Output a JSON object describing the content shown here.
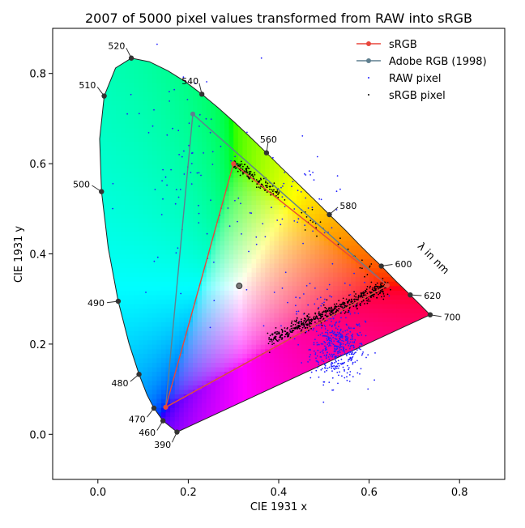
{
  "chart_data": {
    "type": "scatter",
    "title": "2007 of 5000 pixel values transformed from RAW into sRGB",
    "xlabel": "CIE 1931 x",
    "ylabel": "CIE 1931 y",
    "xlim": [
      -0.1,
      0.9
    ],
    "ylim": [
      -0.1,
      0.9
    ],
    "x_ticks": [
      0.0,
      0.2,
      0.4,
      0.6,
      0.8
    ],
    "y_ticks": [
      0.0,
      0.2,
      0.4,
      0.6,
      0.8
    ],
    "x_tick_labels": [
      "0.0",
      "0.2",
      "0.4",
      "0.6",
      "0.8"
    ],
    "y_tick_labels": [
      "0.0",
      "0.2",
      "0.4",
      "0.6",
      "0.8"
    ],
    "grid": false,
    "legend_position": "top-right",
    "wavelength_axis_label": "λ in nm",
    "spectral_locus": [
      {
        "nm": "390",
        "x": 0.175,
        "y": 0.005
      },
      {
        "nm": "460",
        "x": 0.144,
        "y": 0.03
      },
      {
        "nm": "470",
        "x": 0.124,
        "y": 0.058
      },
      {
        "nm": "480",
        "x": 0.091,
        "y": 0.133
      },
      {
        "nm": "490",
        "x": 0.045,
        "y": 0.295
      },
      {
        "nm": "500",
        "x": 0.008,
        "y": 0.538
      },
      {
        "nm": "510",
        "x": 0.014,
        "y": 0.75
      },
      {
        "nm": "520",
        "x": 0.074,
        "y": 0.834
      },
      {
        "nm": "540",
        "x": 0.23,
        "y": 0.754
      },
      {
        "nm": "560",
        "x": 0.373,
        "y": 0.624
      },
      {
        "nm": "580",
        "x": 0.512,
        "y": 0.487
      },
      {
        "nm": "600",
        "x": 0.627,
        "y": 0.373
      },
      {
        "nm": "620",
        "x": 0.691,
        "y": 0.309
      },
      {
        "nm": "700",
        "x": 0.735,
        "y": 0.265
      }
    ],
    "locus_shape": [
      [
        0.175,
        0.005
      ],
      [
        0.144,
        0.03
      ],
      [
        0.124,
        0.058
      ],
      [
        0.109,
        0.087
      ],
      [
        0.091,
        0.133
      ],
      [
        0.069,
        0.201
      ],
      [
        0.045,
        0.295
      ],
      [
        0.023,
        0.413
      ],
      [
        0.008,
        0.538
      ],
      [
        0.004,
        0.655
      ],
      [
        0.014,
        0.75
      ],
      [
        0.039,
        0.812
      ],
      [
        0.074,
        0.834
      ],
      [
        0.114,
        0.826
      ],
      [
        0.155,
        0.806
      ],
      [
        0.193,
        0.782
      ],
      [
        0.23,
        0.754
      ],
      [
        0.266,
        0.724
      ],
      [
        0.302,
        0.692
      ],
      [
        0.337,
        0.659
      ],
      [
        0.373,
        0.624
      ],
      [
        0.408,
        0.589
      ],
      [
        0.444,
        0.554
      ],
      [
        0.479,
        0.52
      ],
      [
        0.512,
        0.487
      ],
      [
        0.548,
        0.452
      ],
      [
        0.578,
        0.421
      ],
      [
        0.603,
        0.396
      ],
      [
        0.627,
        0.373
      ],
      [
        0.658,
        0.341
      ],
      [
        0.691,
        0.309
      ],
      [
        0.713,
        0.287
      ],
      [
        0.735,
        0.265
      ]
    ],
    "series": [
      {
        "name": "sRGB",
        "color": "#e8473c",
        "marker": "circle",
        "points": [
          [
            0.64,
            0.33
          ],
          [
            0.3,
            0.6
          ],
          [
            0.15,
            0.06
          ],
          [
            0.64,
            0.33
          ]
        ]
      },
      {
        "name": "Adobe RGB (1998)",
        "color": "#5f7f8f",
        "marker": "circle",
        "points": [
          [
            0.64,
            0.33
          ],
          [
            0.21,
            0.71
          ],
          [
            0.15,
            0.06
          ],
          [
            0.64,
            0.33
          ]
        ]
      },
      {
        "name": "RAW pixel",
        "color": "#1f1fff",
        "marker": "dot"
      },
      {
        "name": "sRGB pixel",
        "color": "#000000",
        "marker": "dot"
      }
    ],
    "white_point": {
      "x": 0.3127,
      "y": 0.329
    },
    "raw_pixel_clusters": [
      {
        "cx": 0.53,
        "cy": 0.19,
        "sx": 0.03,
        "sy": 0.035,
        "n": 420
      },
      {
        "cx": 0.5,
        "cy": 0.28,
        "sx": 0.06,
        "sy": 0.04,
        "n": 60
      },
      {
        "cx": 0.45,
        "cy": 0.52,
        "sx": 0.06,
        "sy": 0.04,
        "n": 50
      },
      {
        "cx": 0.2,
        "cy": 0.55,
        "sx": 0.08,
        "sy": 0.14,
        "n": 90
      }
    ],
    "srgb_pixel_segments": [
      {
        "x0": 0.38,
        "y0": 0.21,
        "x1": 0.64,
        "y1": 0.33,
        "spread": 0.008,
        "n": 520
      },
      {
        "x0": 0.3,
        "y0": 0.6,
        "x1": 0.4,
        "y1": 0.53,
        "spread": 0.007,
        "n": 140
      },
      {
        "x0": 0.4,
        "y0": 0.53,
        "x1": 0.64,
        "y1": 0.33,
        "spread": 0.01,
        "n": 30
      }
    ]
  }
}
